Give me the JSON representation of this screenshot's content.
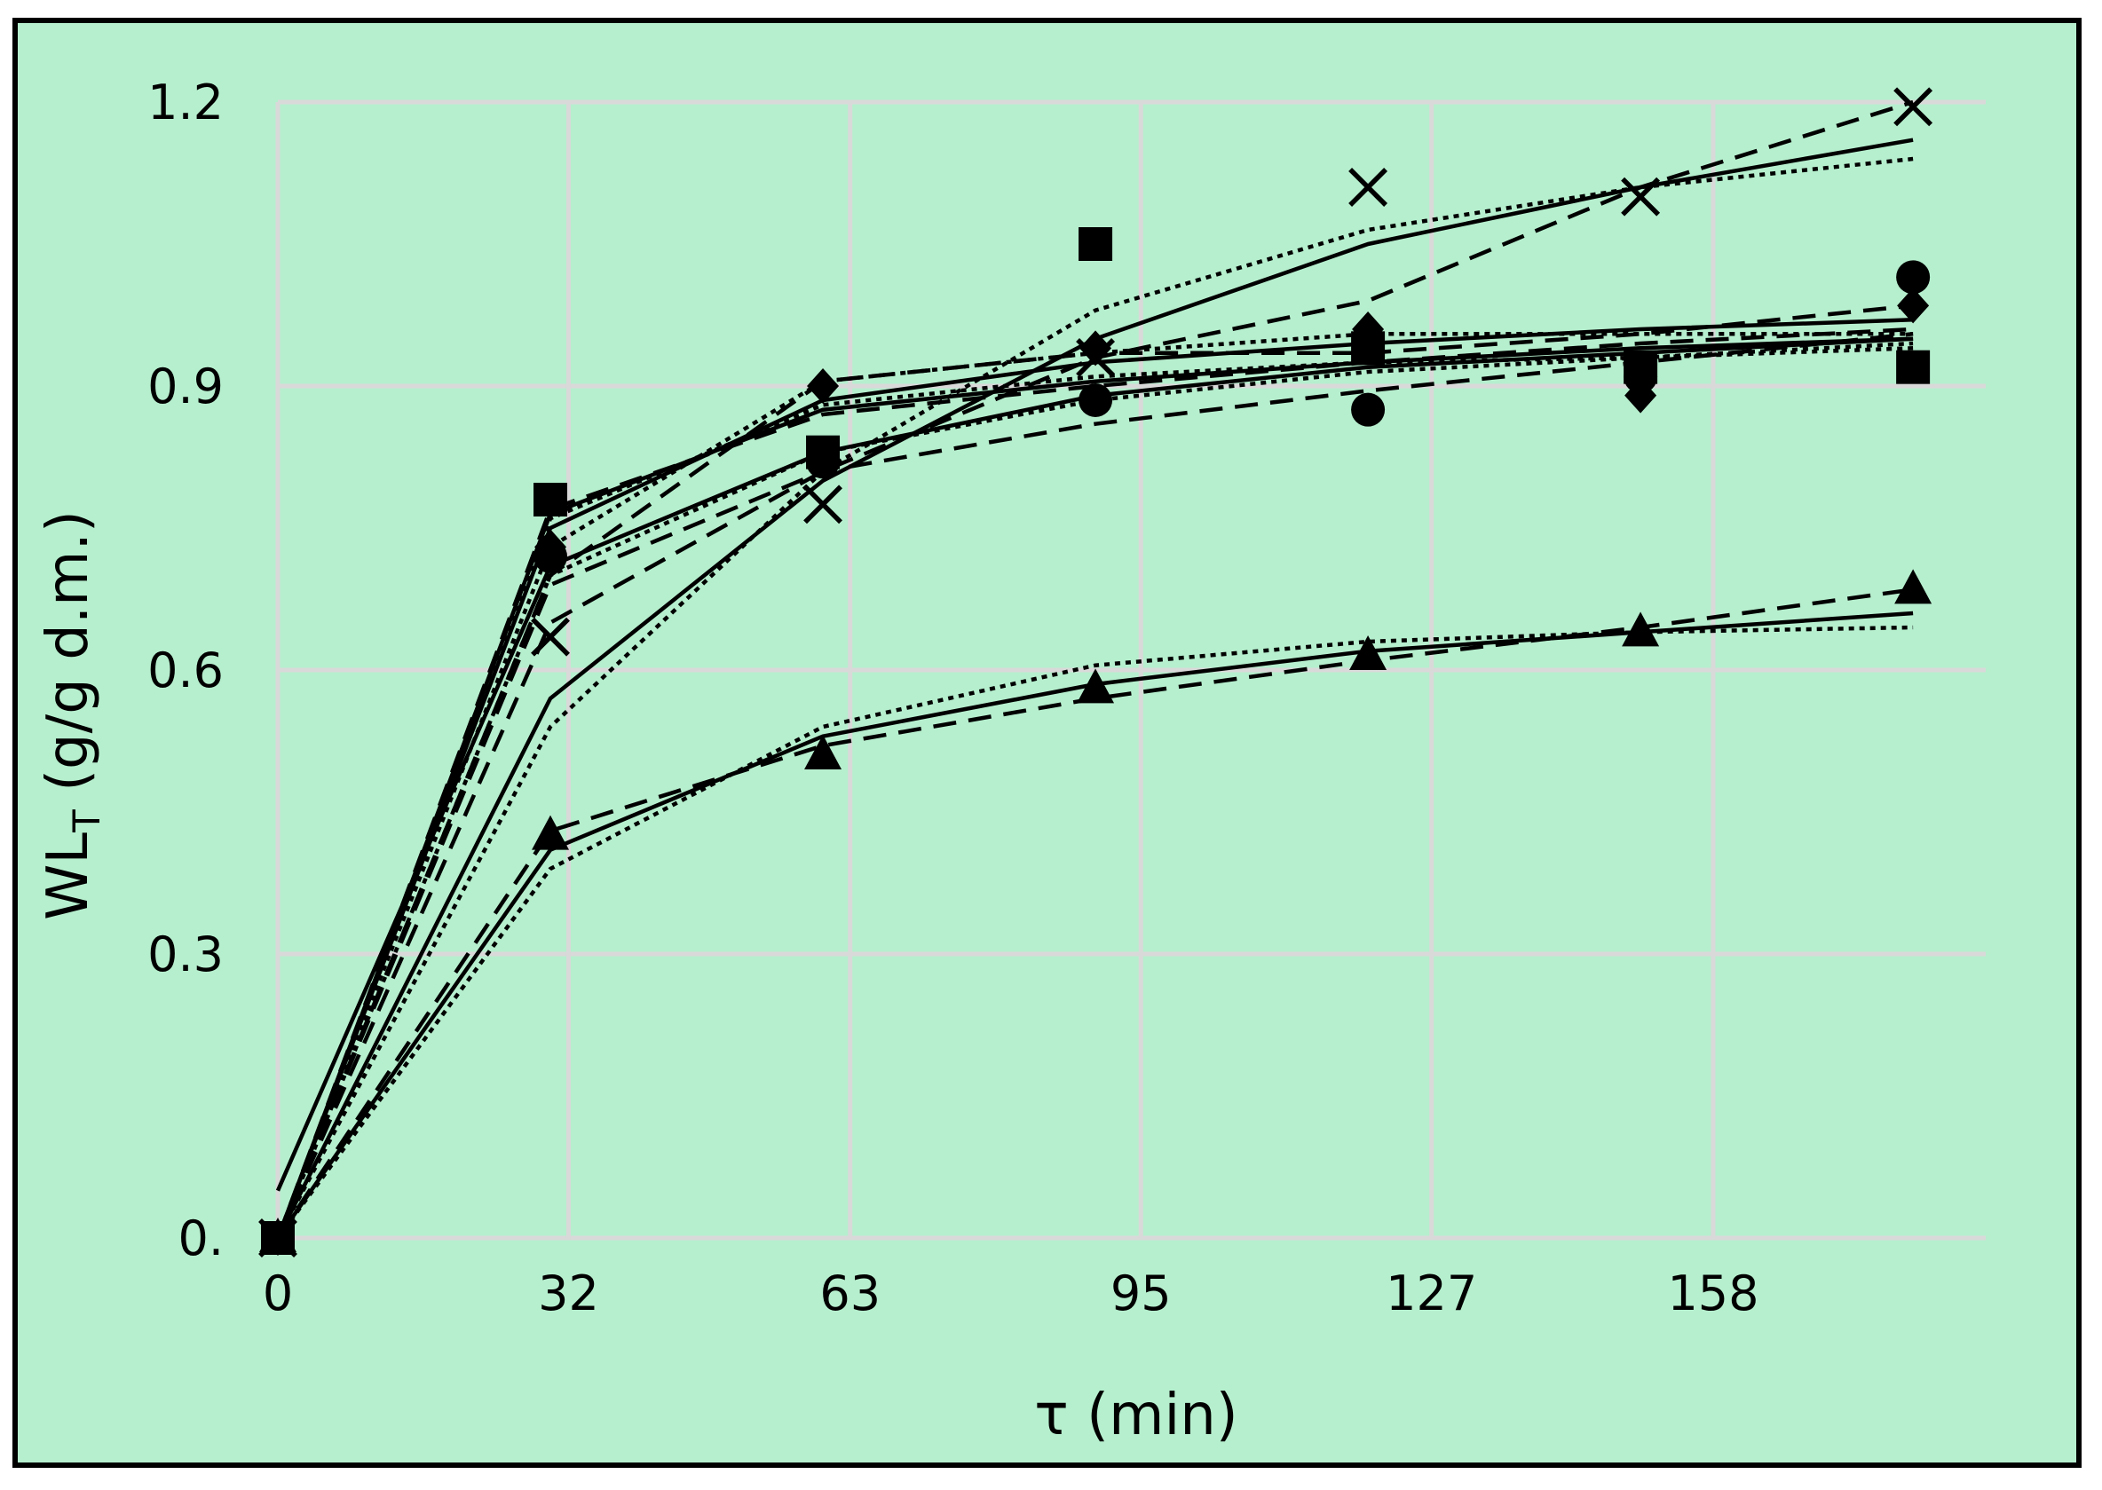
{
  "chart_data": {
    "type": "line",
    "title": "",
    "xlabel": "τ (min)",
    "ylabel_main": "WL",
    "ylabel_sub": "T",
    "ylabel_rest": " (g/g d.m.)",
    "xlim": [
      0,
      188
    ],
    "ylim": [
      0,
      1.2
    ],
    "x_ticks": [
      0,
      32,
      63,
      95,
      127,
      158
    ],
    "x_tick_labels": [
      "0",
      "32",
      "63",
      "95",
      "127",
      "158"
    ],
    "y_ticks": [
      0,
      0.3,
      0.6,
      0.9,
      1.2
    ],
    "y_tick_labels": [
      "0.",
      "0.3",
      "0.6",
      "0.9",
      "1.2"
    ],
    "grid": true,
    "colors": {
      "background": "#b6efce",
      "grid": "#d9d9d9",
      "marks": "#000000"
    },
    "x": [
      0,
      30,
      60,
      90,
      120,
      150,
      180
    ],
    "series": [
      {
        "marker": "square",
        "points": [
          0,
          0.78,
          0.83,
          1.05,
          0.94,
          0.92,
          0.92
        ],
        "fits": [
          {
            "style": "solid",
            "values": [
              0,
              0.765,
              0.875,
              0.905,
              0.925,
              0.94,
              0.95
            ]
          },
          {
            "style": "dashed",
            "values": [
              0,
              0.77,
              0.87,
              0.9,
              0.925,
              0.945,
              0.96
            ]
          },
          {
            "style": "dotted",
            "values": [
              0,
              0.76,
              0.88,
              0.91,
              0.925,
              0.93,
              0.94
            ]
          }
        ]
      },
      {
        "marker": "circle",
        "points": [
          0,
          0.72,
          0.82,
          0.885,
          0.875,
          0.91,
          1.015
        ],
        "fits": [
          {
            "style": "solid",
            "values": [
              0.05,
              0.71,
              0.83,
              0.89,
              0.92,
              0.935,
              0.95
            ]
          },
          {
            "style": "dashed",
            "values": [
              0,
              0.69,
              0.81,
              0.86,
              0.895,
              0.925,
              0.955
            ]
          },
          {
            "style": "dotted",
            "values": [
              0,
              0.7,
              0.83,
              0.885,
              0.915,
              0.93,
              0.945
            ]
          }
        ]
      },
      {
        "marker": "diamond",
        "points": [
          0,
          0.73,
          0.9,
          0.94,
          0.96,
          0.89,
          0.985
        ],
        "fits": [
          {
            "style": "solid",
            "values": [
              0,
              0.75,
              0.885,
              0.925,
              0.945,
              0.96,
              0.97
            ]
          },
          {
            "style": "dashed",
            "values": [
              0,
              0.7,
              0.905,
              0.935,
              0.935,
              0.955,
              0.985
            ]
          },
          {
            "style": "dotted",
            "values": [
              0,
              0.73,
              0.905,
              0.935,
              0.955,
              0.955,
              0.955
            ]
          }
        ]
      },
      {
        "marker": "x",
        "points": [
          0,
          0.635,
          0.775,
          0.93,
          1.11,
          1.1,
          1.195
        ],
        "fits": [
          {
            "style": "solid",
            "values": [
              0,
              0.57,
              0.8,
              0.95,
              1.05,
              1.11,
              1.16
            ]
          },
          {
            "style": "dashed",
            "values": [
              0,
              0.65,
              0.81,
              0.93,
              0.99,
              1.11,
              1.2
            ]
          },
          {
            "style": "dotted",
            "values": [
              0,
              0.54,
              0.81,
              0.98,
              1.065,
              1.11,
              1.14
            ]
          }
        ]
      },
      {
        "marker": "triangle",
        "points": [
          0,
          0.425,
          0.51,
          0.58,
          0.615,
          0.64,
          0.685
        ],
        "fits": [
          {
            "style": "solid",
            "values": [
              0,
              0.41,
              0.53,
              0.585,
              0.62,
              0.64,
              0.66
            ]
          },
          {
            "style": "dashed",
            "values": [
              0,
              0.43,
              0.52,
              0.57,
              0.61,
              0.645,
              0.685
            ]
          },
          {
            "style": "dotted",
            "values": [
              0,
              0.39,
              0.54,
              0.605,
              0.63,
              0.64,
              0.645
            ]
          }
        ]
      }
    ]
  }
}
